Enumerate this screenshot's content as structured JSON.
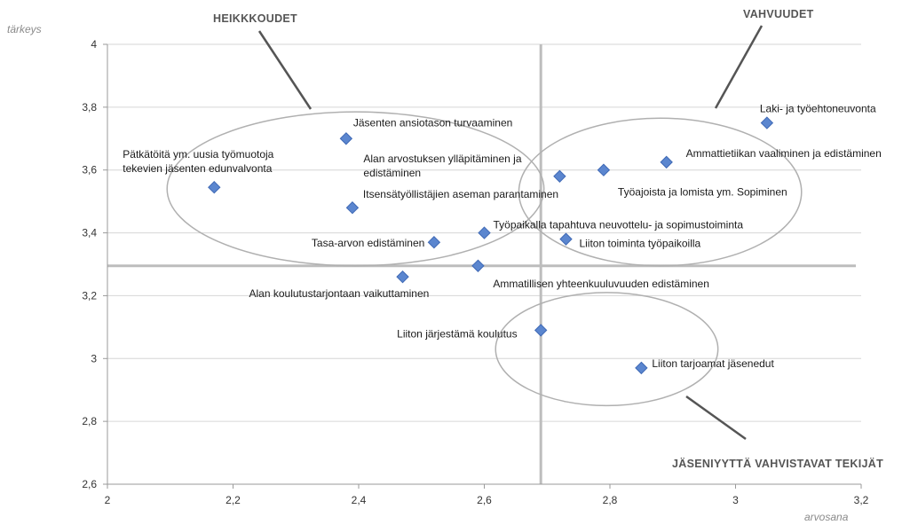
{
  "chart_data": {
    "type": "scatter",
    "xlabel": "arvosana",
    "ylabel": "tärkeys",
    "xlim": [
      2,
      3.2
    ],
    "ylim": [
      2.6,
      4
    ],
    "xticks": [
      2,
      2.2,
      2.4,
      2.6,
      2.8,
      3,
      3.2
    ],
    "xtick_labels": [
      "2",
      "2,2",
      "2,4",
      "2,6",
      "2,8",
      "3",
      "3,2"
    ],
    "yticks": [
      2.6,
      2.8,
      3,
      3.2,
      3.4,
      3.6,
      3.8,
      4
    ],
    "ytick_labels": [
      "2,6",
      "2,8",
      "3",
      "3,2",
      "3,4",
      "3,6",
      "3,8",
      "4"
    ],
    "grid": "horizontal",
    "divider_x": 2.69,
    "divider_y": 3.295,
    "marker_color": "#5b86cf",
    "points": [
      {
        "x": 3.05,
        "y": 3.75,
        "lines": [
          "Laki- ja työehtoneuvonta"
        ]
      },
      {
        "x": 2.89,
        "y": 3.625,
        "lines": [
          "Ammattietiikan vaaliminen ja edistäminen"
        ]
      },
      {
        "x": 2.79,
        "y": 3.6,
        "lines": [
          "Työajoista ja lomista ym. Sopiminen"
        ]
      },
      {
        "x": 2.72,
        "y": 3.58,
        "lines": [
          "Alan arvostuksen ylläpitäminen ja",
          "edistäminen"
        ]
      },
      {
        "x": 2.38,
        "y": 3.7,
        "lines": [
          "Jäsenten ansiotason turvaaminen"
        ]
      },
      {
        "x": 2.17,
        "y": 3.545,
        "lines": [
          "Pätkätöitä ym. uusia työmuotoja",
          "tekevien jäsenten edunvalvonta"
        ]
      },
      {
        "x": 2.39,
        "y": 3.48,
        "lines": [
          "Itsensätyöllistäjien aseman parantaminen"
        ]
      },
      {
        "x": 2.6,
        "y": 3.4,
        "lines": [
          "Työpaikalla tapahtuva neuvottelu- ja sopimustoiminta"
        ]
      },
      {
        "x": 2.52,
        "y": 3.37,
        "lines": [
          "Tasa-arvon edistäminen"
        ]
      },
      {
        "x": 2.73,
        "y": 3.38,
        "lines": [
          "Liiton toiminta työpaikoilla"
        ]
      },
      {
        "x": 2.59,
        "y": 3.295,
        "lines": [
          "Ammatillisen yhteenkuuluvuuden edistäminen"
        ]
      },
      {
        "x": 2.47,
        "y": 3.26,
        "lines": [
          "Alan koulutustarjontaan vaikuttaminen"
        ]
      },
      {
        "x": 2.69,
        "y": 3.09,
        "lines": [
          "Liiton järjestämä koulutus"
        ]
      },
      {
        "x": 2.85,
        "y": 2.97,
        "lines": [
          "Liiton tarjoamat jäsenedut"
        ]
      }
    ],
    "annotations": [
      {
        "text": "HEIKKKOUDET"
      },
      {
        "text": "VAHVUUDET"
      },
      {
        "text": "JÄSENIYYTTÄ VAHVISTAVAT TEKIJÄT"
      }
    ]
  }
}
